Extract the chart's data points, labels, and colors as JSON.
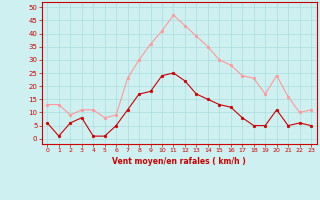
{
  "x": [
    0,
    1,
    2,
    3,
    4,
    5,
    6,
    7,
    8,
    9,
    10,
    11,
    12,
    13,
    14,
    15,
    16,
    17,
    18,
    19,
    20,
    21,
    22,
    23
  ],
  "vent_moyen": [
    6,
    1,
    6,
    8,
    1,
    1,
    5,
    11,
    17,
    18,
    24,
    25,
    22,
    17,
    15,
    13,
    12,
    8,
    5,
    5,
    11,
    5,
    6,
    5
  ],
  "rafales": [
    13,
    13,
    9,
    11,
    11,
    8,
    9,
    23,
    30,
    36,
    41,
    47,
    43,
    39,
    35,
    30,
    28,
    24,
    23,
    17,
    24,
    16,
    10,
    11
  ],
  "moyen_color": "#cc0000",
  "rafales_color": "#ff9999",
  "bg_color": "#cff0f0",
  "grid_color": "#aadddd",
  "axis_label": "Vent moyen/en rafales ( km/h )",
  "yticks": [
    0,
    5,
    10,
    15,
    20,
    25,
    30,
    35,
    40,
    45,
    50
  ],
  "ylim": [
    -2,
    52
  ],
  "xlim": [
    -0.5,
    23.5
  ]
}
